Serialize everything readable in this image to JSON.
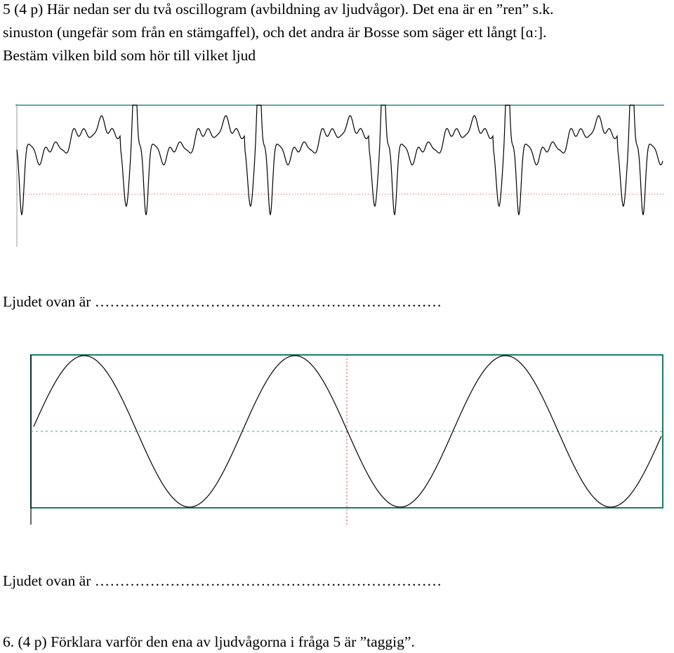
{
  "question5": {
    "lines": [
      "5 (4 p) Här nedan ser du två oscillogram (avbildning av ljudvågor). Det ena är en ”ren” s.k.",
      "sinuston (ungefär som från en stämgaffel), och det andra är Bosse som säger ett långt [ɑː].",
      "Bestäm vilken bild som hör till vilket ljud"
    ],
    "answer1": {
      "label": "Ljudet ovan är",
      "blank": "……………………………………………………………"
    },
    "answer2": {
      "label": "Ljudet ovan är",
      "blank": "……………………………………………………………"
    }
  },
  "question6": {
    "text": "6. (4 p) Förklara varför den ena av ljudvågorna i fråga 5 är ”taggig”."
  }
}
